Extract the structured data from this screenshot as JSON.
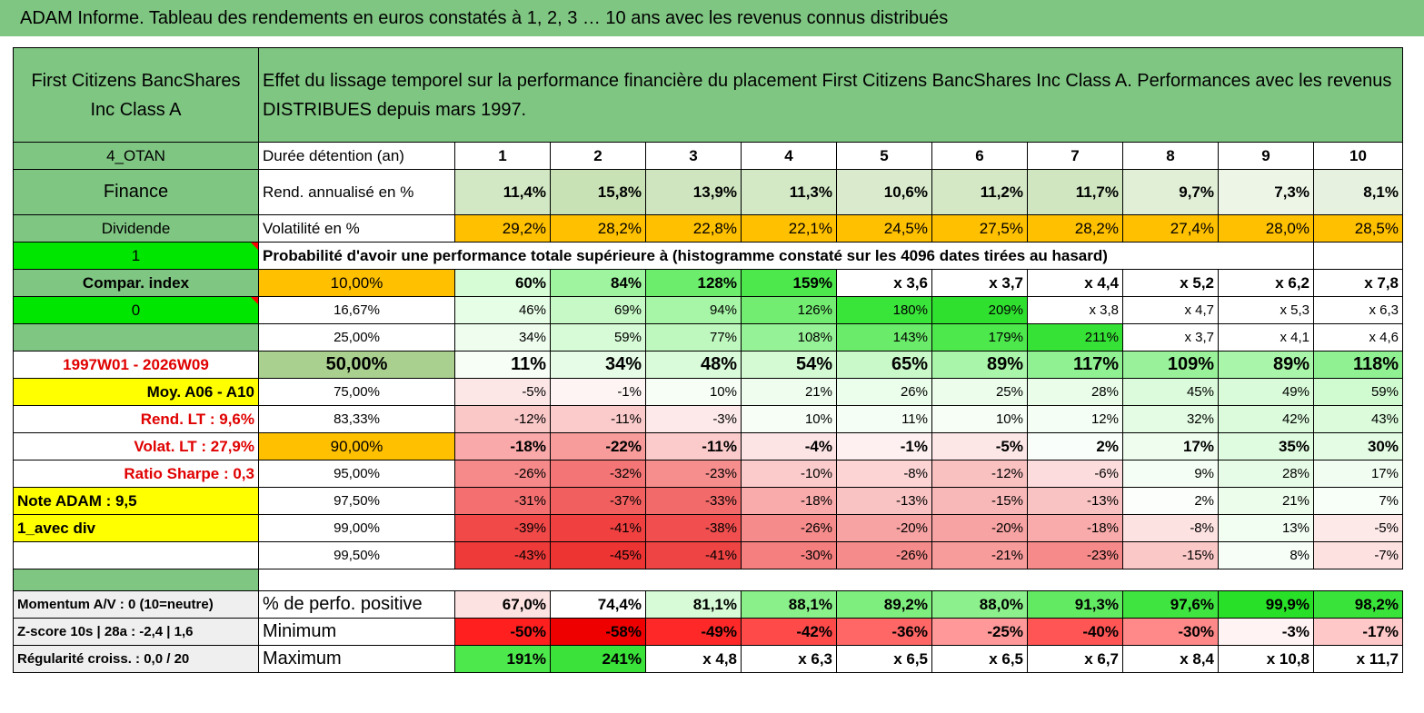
{
  "title": "ADAM Informe. Tableau des rendements en euros constatés à 1, 2, 3 … 10 ans avec les revenus connus distribués",
  "header": {
    "fund": "First Citizens BancShares Inc Class A",
    "description": "Effet du lissage temporel sur la performance financière du placement First Citizens BancShares Inc Class A. Performances avec les revenus DISTRIBUES depuis mars 1997."
  },
  "side": {
    "code": "4_OTAN",
    "sector": "Finance",
    "type": "Dividende",
    "flag1": "1",
    "compar": "Compar. index",
    "flag0": "0",
    "period": "1997W01 - 2026W09",
    "moy": "Moy. A06 - A10",
    "rend_lt": "Rend. LT :   9,6%",
    "volat_lt": "Volat. LT :   27,9%",
    "sharpe": "Ratio Sharpe :   0,3",
    "note": "Note ADAM : 9,5",
    "avec_div": "1_avec div",
    "momentum": "Momentum A/V : 0 (10=neutre)",
    "zscore": "Z-score 10s | 28a : -2,4 | 1,6",
    "regularite": "Régularité croiss. : 0,0 / 20"
  },
  "labels": {
    "duree": "Durée détention (an)",
    "rend": "Rend. annualisé en %",
    "vol": "Volatilité en %",
    "proba": "Probabilité d'avoir une performance totale supérieure à (histogramme constaté sur les 4096 dates tirées au hasard)",
    "positive": "% de perfo. positive",
    "minimum": "Minimum",
    "maximum": "Maximum"
  },
  "years": [
    "1",
    "2",
    "3",
    "4",
    "5",
    "6",
    "7",
    "8",
    "9",
    "10"
  ],
  "rend": [
    "11,4%",
    "15,8%",
    "13,9%",
    "11,3%",
    "10,6%",
    "11,2%",
    "11,7%",
    "9,7%",
    "7,3%",
    "8,1%"
  ],
  "vol": [
    "29,2%",
    "28,2%",
    "22,8%",
    "22,1%",
    "24,5%",
    "27,5%",
    "28,2%",
    "27,4%",
    "28,0%",
    "28,5%"
  ],
  "prob_rows": [
    {
      "p": "10,00%",
      "v": [
        "60%",
        "84%",
        "128%",
        "159%",
        "x 3,6",
        "x 3,7",
        "x 4,4",
        "x 5,2",
        "x 6,2",
        "x 7,8"
      ]
    },
    {
      "p": "16,67%",
      "v": [
        "46%",
        "69%",
        "94%",
        "126%",
        "180%",
        "209%",
        "x 3,8",
        "x 4,7",
        "x 5,3",
        "x 6,3"
      ]
    },
    {
      "p": "25,00%",
      "v": [
        "34%",
        "59%",
        "77%",
        "108%",
        "143%",
        "179%",
        "211%",
        "x 3,7",
        "x 4,1",
        "x 4,6"
      ]
    },
    {
      "p": "50,00%",
      "v": [
        "11%",
        "34%",
        "48%",
        "54%",
        "65%",
        "89%",
        "117%",
        "109%",
        "89%",
        "118%"
      ]
    },
    {
      "p": "75,00%",
      "v": [
        "-5%",
        "-1%",
        "10%",
        "21%",
        "26%",
        "25%",
        "28%",
        "45%",
        "49%",
        "59%"
      ]
    },
    {
      "p": "83,33%",
      "v": [
        "-12%",
        "-11%",
        "-3%",
        "10%",
        "11%",
        "10%",
        "12%",
        "32%",
        "42%",
        "43%"
      ]
    },
    {
      "p": "90,00%",
      "v": [
        "-18%",
        "-22%",
        "-11%",
        "-4%",
        "-1%",
        "-5%",
        "2%",
        "17%",
        "35%",
        "30%"
      ]
    },
    {
      "p": "95,00%",
      "v": [
        "-26%",
        "-32%",
        "-23%",
        "-10%",
        "-8%",
        "-12%",
        "-6%",
        "9%",
        "28%",
        "17%"
      ]
    },
    {
      "p": "97,50%",
      "v": [
        "-31%",
        "-37%",
        "-33%",
        "-18%",
        "-13%",
        "-15%",
        "-13%",
        "2%",
        "21%",
        "7%"
      ]
    },
    {
      "p": "99,00%",
      "v": [
        "-39%",
        "-41%",
        "-38%",
        "-26%",
        "-20%",
        "-20%",
        "-18%",
        "-8%",
        "13%",
        "-5%"
      ]
    },
    {
      "p": "99,50%",
      "v": [
        "-43%",
        "-45%",
        "-41%",
        "-30%",
        "-26%",
        "-21%",
        "-23%",
        "-15%",
        "8%",
        "-7%"
      ]
    }
  ],
  "positive": [
    "67,0%",
    "74,4%",
    "81,1%",
    "88,1%",
    "89,2%",
    "88,0%",
    "91,3%",
    "97,6%",
    "99,9%",
    "98,2%"
  ],
  "minimum": [
    "-50%",
    "-58%",
    "-49%",
    "-42%",
    "-36%",
    "-25%",
    "-40%",
    "-30%",
    "-3%",
    "-17%"
  ],
  "maximum": [
    "191%",
    "241%",
    "x 4,8",
    "x 6,3",
    "x 6,5",
    "x 6,5",
    "x 6,7",
    "x 8,4",
    "x 10,8",
    "x 11,7"
  ],
  "colors": {
    "header_green": "#80c683",
    "rend_greens": [
      "#d2e8c4",
      "#c8e2b6",
      "#cee5bf",
      "#d3e8c5",
      "#d9ebcc",
      "#d4e8c6",
      "#cfe6c0",
      "#e0efd6",
      "#ecf5e6",
      "#e6f2df"
    ],
    "vol_orange": "#ffc000",
    "prob_bg": [
      [
        "#d6fcd6",
        "#9ff59f",
        "#6ced6c",
        "#4ce84c",
        "#ffffff",
        "#ffffff",
        "#ffffff",
        "#ffffff",
        "#ffffff",
        "#ffffff"
      ],
      [
        "#e6fde6",
        "#c7f9c7",
        "#a7f5a7",
        "#72ed72",
        "#3ae53a",
        "#2fe02f",
        "#ffffff",
        "#ffffff",
        "#ffffff",
        "#ffffff"
      ],
      [
        "#eefdee",
        "#d6fbd6",
        "#bff8bf",
        "#96f296",
        "#6aec6a",
        "#4ce84c",
        "#37e237",
        "#ffffff",
        "#ffffff",
        "#ffffff"
      ],
      [
        "#f6fef6",
        "#e6fce6",
        "#d9fbd9",
        "#d3fad3",
        "#c9f9c9",
        "#a9f5a9",
        "#8ff191",
        "#99f299",
        "#a9f5a9",
        "#8ff191"
      ],
      [
        "#fde6e6",
        "#fef4f4",
        "#f6fef6",
        "#eefdee",
        "#ebfdeb",
        "#ecfdec",
        "#e9fde9",
        "#dcfbdc",
        "#d9fbd9",
        "#d0fad0"
      ],
      [
        "#fbc8c8",
        "#fbcbcb",
        "#fde9e9",
        "#f6fef6",
        "#f5fef5",
        "#f6fef6",
        "#f4fef4",
        "#e3fce3",
        "#dcfbdc",
        "#dbfbdb"
      ],
      [
        "#f9a9a9",
        "#f89b9b",
        "#fbcbcb",
        "#fde4e4",
        "#fef0f0",
        "#fde6e6",
        "#fafefa",
        "#effdef",
        "#e0fce0",
        "#e4fce4"
      ],
      [
        "#f68989",
        "#f47575",
        "#f78e8e",
        "#fbcbcb",
        "#fcd4d4",
        "#fac1c1",
        "#fcdcdc",
        "#f4fef4",
        "#e7fce7",
        "#f0fdf0"
      ],
      [
        "#f46f6f",
        "#f25f5f",
        "#f36a6a",
        "#f9abab",
        "#fac3c3",
        "#f9b8b8",
        "#fac3c3",
        "#fbfefb",
        "#edfdeb",
        "#f8fef8"
      ],
      [
        "#f14848",
        "#f04040",
        "#f14f4f",
        "#f68b8b",
        "#f8a3a3",
        "#f8a3a3",
        "#f9abab",
        "#fde2e2",
        "#f3fef3",
        "#fee9e9"
      ],
      [
        "#ef3a3a",
        "#ee3333",
        "#ef4444",
        "#f57e7e",
        "#f68b8b",
        "#f89b9b",
        "#f68989",
        "#fbc8c8",
        "#f7fef7",
        "#fde0e0"
      ]
    ],
    "positive_bg": [
      "#fde2e2",
      "#ffffff",
      "#d6fbd6",
      "#8af08a",
      "#7eee7e",
      "#8cf08c",
      "#63ea63",
      "#40e440",
      "#28e028",
      "#3ae33a"
    ],
    "minimum_bg": [
      "#ff1f1f",
      "#ee0000",
      "#ff2828",
      "#ff4a4a",
      "#ff6666",
      "#ff9999",
      "#ff5555",
      "#ff8888",
      "#fff3f3",
      "#ffc8c8"
    ],
    "maximum_bg": [
      "#4ce84c",
      "#3ae23a",
      "#ffffff",
      "#ffffff",
      "#ffffff",
      "#ffffff",
      "#ffffff",
      "#ffffff",
      "#ffffff",
      "#ffffff"
    ],
    "green_flag": "#00e600",
    "yellow": "#ffff00",
    "gray": "#efefef"
  }
}
